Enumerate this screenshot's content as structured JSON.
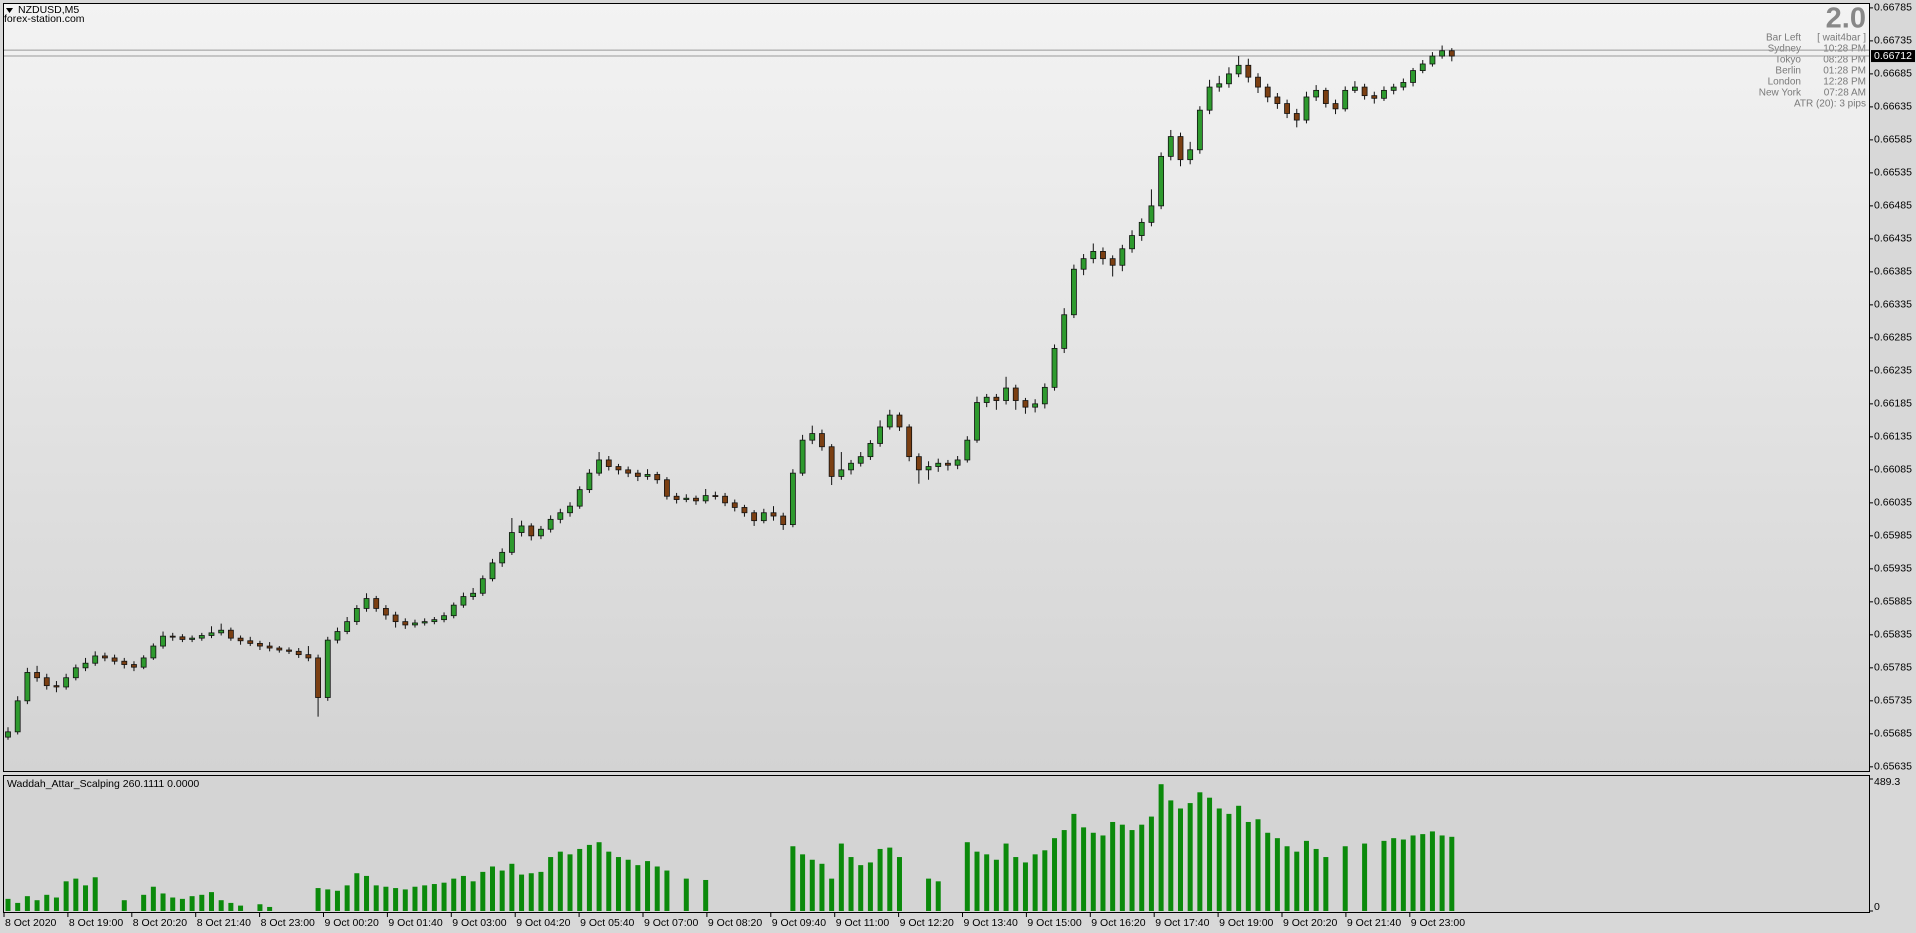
{
  "chart_data": [
    {
      "type": "candlestick",
      "title": "NZDUSD,M5",
      "subtitle": "forex-station.com",
      "ohlc": [
        [
          0.6568,
          0.65695,
          0.65676,
          0.65688
        ],
        [
          0.65688,
          0.65742,
          0.65684,
          0.65735
        ],
        [
          0.65735,
          0.65785,
          0.6573,
          0.65778
        ],
        [
          0.65778,
          0.65788,
          0.65764,
          0.6577
        ],
        [
          0.6577,
          0.65776,
          0.65752,
          0.65758
        ],
        [
          0.65758,
          0.65765,
          0.65748,
          0.65756
        ],
        [
          0.65756,
          0.65776,
          0.65752,
          0.6577
        ],
        [
          0.6577,
          0.6579,
          0.65766,
          0.65785
        ],
        [
          0.65785,
          0.658,
          0.6578,
          0.65792
        ],
        [
          0.65792,
          0.6581,
          0.65788,
          0.65803
        ],
        [
          0.65803,
          0.65808,
          0.65795,
          0.658
        ],
        [
          0.658,
          0.65805,
          0.6579,
          0.65795
        ],
        [
          0.65795,
          0.658,
          0.65784,
          0.6579
        ],
        [
          0.6579,
          0.65795,
          0.6578,
          0.65786
        ],
        [
          0.65786,
          0.65804,
          0.65783,
          0.658
        ],
        [
          0.658,
          0.65822,
          0.65797,
          0.65818
        ],
        [
          0.65818,
          0.6584,
          0.65814,
          0.65833
        ],
        [
          0.65833,
          0.65838,
          0.65826,
          0.65832
        ],
        [
          0.65832,
          0.65836,
          0.65824,
          0.65828
        ],
        [
          0.65828,
          0.65834,
          0.65824,
          0.6583
        ],
        [
          0.6583,
          0.65838,
          0.65826,
          0.65834
        ],
        [
          0.65834,
          0.65848,
          0.6583,
          0.65838
        ],
        [
          0.65838,
          0.65852,
          0.65834,
          0.65842
        ],
        [
          0.65842,
          0.65846,
          0.65826,
          0.6583
        ],
        [
          0.6583,
          0.65834,
          0.6582,
          0.65826
        ],
        [
          0.65826,
          0.65832,
          0.65818,
          0.65822
        ],
        [
          0.65822,
          0.65826,
          0.65812,
          0.65818
        ],
        [
          0.65818,
          0.65824,
          0.6581,
          0.65815
        ],
        [
          0.65815,
          0.65818,
          0.65808,
          0.65812
        ],
        [
          0.65812,
          0.65816,
          0.65806,
          0.6581
        ],
        [
          0.6581,
          0.65815,
          0.658,
          0.65805
        ],
        [
          0.65805,
          0.65818,
          0.65795,
          0.658
        ],
        [
          0.658,
          0.65805,
          0.65711,
          0.6574
        ],
        [
          0.6574,
          0.65832,
          0.65735,
          0.65827
        ],
        [
          0.65827,
          0.65846,
          0.65822,
          0.6584
        ],
        [
          0.6584,
          0.65862,
          0.65836,
          0.65855
        ],
        [
          0.65855,
          0.6588,
          0.6585,
          0.65875
        ],
        [
          0.65875,
          0.65898,
          0.6587,
          0.6589
        ],
        [
          0.6589,
          0.65894,
          0.6587,
          0.65875
        ],
        [
          0.65875,
          0.6588,
          0.65858,
          0.65865
        ],
        [
          0.65865,
          0.6587,
          0.65846,
          0.65855
        ],
        [
          0.65855,
          0.6586,
          0.65844,
          0.6585
        ],
        [
          0.6585,
          0.65858,
          0.65846,
          0.65853
        ],
        [
          0.65853,
          0.6586,
          0.65849,
          0.65855
        ],
        [
          0.65855,
          0.65862,
          0.65851,
          0.65858
        ],
        [
          0.65858,
          0.65869,
          0.65854,
          0.65864
        ],
        [
          0.65864,
          0.65884,
          0.6586,
          0.6588
        ],
        [
          0.6588,
          0.65899,
          0.65876,
          0.65893
        ],
        [
          0.65893,
          0.65906,
          0.65888,
          0.65898
        ],
        [
          0.65898,
          0.65925,
          0.65894,
          0.6592
        ],
        [
          0.6592,
          0.6595,
          0.65916,
          0.65944
        ],
        [
          0.65944,
          0.65966,
          0.65938,
          0.6596
        ],
        [
          0.6596,
          0.66012,
          0.65956,
          0.6599
        ],
        [
          0.6599,
          0.66008,
          0.65984,
          0.66
        ],
        [
          0.66,
          0.66004,
          0.65978,
          0.65985
        ],
        [
          0.65985,
          0.66,
          0.6598,
          0.65995
        ],
        [
          0.65995,
          0.66016,
          0.6599,
          0.6601
        ],
        [
          0.6601,
          0.66026,
          0.66004,
          0.6602
        ],
        [
          0.6602,
          0.66036,
          0.66014,
          0.6603
        ],
        [
          0.6603,
          0.6606,
          0.66026,
          0.66055
        ],
        [
          0.66055,
          0.66086,
          0.6605,
          0.6608
        ],
        [
          0.6608,
          0.66112,
          0.66076,
          0.661
        ],
        [
          0.661,
          0.66106,
          0.66084,
          0.6609
        ],
        [
          0.6609,
          0.66094,
          0.66078,
          0.66085
        ],
        [
          0.66085,
          0.6609,
          0.66074,
          0.6608
        ],
        [
          0.6608,
          0.66085,
          0.66068,
          0.66075
        ],
        [
          0.66075,
          0.66086,
          0.6607,
          0.66078
        ],
        [
          0.66078,
          0.66082,
          0.66064,
          0.6607
        ],
        [
          0.6607,
          0.66074,
          0.6604,
          0.66045
        ],
        [
          0.66045,
          0.6605,
          0.66034,
          0.6604
        ],
        [
          0.6604,
          0.66048,
          0.66036,
          0.66042
        ],
        [
          0.66042,
          0.66046,
          0.66032,
          0.66038
        ],
        [
          0.66038,
          0.66056,
          0.66034,
          0.66046
        ],
        [
          0.66046,
          0.66052,
          0.6604,
          0.66045
        ],
        [
          0.66045,
          0.6605,
          0.6603,
          0.66035
        ],
        [
          0.66035,
          0.6604,
          0.66022,
          0.66028
        ],
        [
          0.66028,
          0.66032,
          0.66014,
          0.6602
        ],
        [
          0.6602,
          0.66024,
          0.66,
          0.66008
        ],
        [
          0.66008,
          0.66026,
          0.66004,
          0.6602
        ],
        [
          0.6602,
          0.6603,
          0.66008,
          0.66015
        ],
        [
          0.66015,
          0.6602,
          0.65994,
          0.66002
        ],
        [
          0.66002,
          0.66086,
          0.65998,
          0.6608
        ],
        [
          0.6608,
          0.66138,
          0.66076,
          0.6613
        ],
        [
          0.6613,
          0.66152,
          0.66124,
          0.6614
        ],
        [
          0.6614,
          0.66146,
          0.66114,
          0.6612
        ],
        [
          0.6612,
          0.66124,
          0.66062,
          0.66075
        ],
        [
          0.66075,
          0.66112,
          0.6607,
          0.66085
        ],
        [
          0.66085,
          0.661,
          0.66078,
          0.66095
        ],
        [
          0.66095,
          0.66112,
          0.6609,
          0.66105
        ],
        [
          0.66105,
          0.6613,
          0.661,
          0.66125
        ],
        [
          0.66125,
          0.6616,
          0.6612,
          0.6615
        ],
        [
          0.6615,
          0.66176,
          0.66146,
          0.66168
        ],
        [
          0.66168,
          0.66172,
          0.66144,
          0.6615
        ],
        [
          0.6615,
          0.66154,
          0.66098,
          0.66105
        ],
        [
          0.66105,
          0.6611,
          0.66064,
          0.66085
        ],
        [
          0.66085,
          0.66098,
          0.6607,
          0.6609
        ],
        [
          0.6609,
          0.66102,
          0.66082,
          0.66095
        ],
        [
          0.66095,
          0.661,
          0.66084,
          0.66092
        ],
        [
          0.66092,
          0.66106,
          0.66086,
          0.661
        ],
        [
          0.661,
          0.66136,
          0.66096,
          0.6613
        ],
        [
          0.6613,
          0.66196,
          0.66126,
          0.66187
        ],
        [
          0.66187,
          0.662,
          0.6618,
          0.66195
        ],
        [
          0.66195,
          0.662,
          0.66176,
          0.6619
        ],
        [
          0.6619,
          0.66226,
          0.66184,
          0.66209
        ],
        [
          0.66209,
          0.66214,
          0.66176,
          0.6619
        ],
        [
          0.6619,
          0.66194,
          0.6617,
          0.6618
        ],
        [
          0.6618,
          0.66192,
          0.66172,
          0.66185
        ],
        [
          0.66185,
          0.66216,
          0.66178,
          0.6621
        ],
        [
          0.6621,
          0.66275,
          0.66205,
          0.66269
        ],
        [
          0.66269,
          0.6633,
          0.66262,
          0.6632
        ],
        [
          0.6632,
          0.66396,
          0.66315,
          0.66389
        ],
        [
          0.66389,
          0.66412,
          0.6638,
          0.66405
        ],
        [
          0.66405,
          0.66428,
          0.66398,
          0.66416
        ],
        [
          0.66416,
          0.66422,
          0.66396,
          0.66405
        ],
        [
          0.66405,
          0.6641,
          0.66378,
          0.66395
        ],
        [
          0.66395,
          0.66426,
          0.66386,
          0.6642
        ],
        [
          0.6642,
          0.66448,
          0.66414,
          0.6644
        ],
        [
          0.6644,
          0.66466,
          0.66432,
          0.6646
        ],
        [
          0.6646,
          0.6651,
          0.66454,
          0.66485
        ],
        [
          0.66485,
          0.66566,
          0.6648,
          0.6656
        ],
        [
          0.6656,
          0.666,
          0.66554,
          0.6659
        ],
        [
          0.6659,
          0.66596,
          0.66545,
          0.66555
        ],
        [
          0.66555,
          0.66582,
          0.66548,
          0.6657
        ],
        [
          0.6657,
          0.66636,
          0.66564,
          0.6663
        ],
        [
          0.6663,
          0.66676,
          0.66624,
          0.66665
        ],
        [
          0.66665,
          0.66682,
          0.66658,
          0.6667
        ],
        [
          0.6667,
          0.66695,
          0.66664,
          0.66685
        ],
        [
          0.66685,
          0.66712,
          0.6668,
          0.66698
        ],
        [
          0.66698,
          0.66708,
          0.66672,
          0.6668
        ],
        [
          0.6668,
          0.66686,
          0.66656,
          0.66665
        ],
        [
          0.66665,
          0.6667,
          0.66642,
          0.6665
        ],
        [
          0.6665,
          0.66656,
          0.66632,
          0.6664
        ],
        [
          0.6664,
          0.66646,
          0.66618,
          0.66625
        ],
        [
          0.66625,
          0.66632,
          0.66604,
          0.66615
        ],
        [
          0.66615,
          0.66658,
          0.6661,
          0.6665
        ],
        [
          0.6665,
          0.66668,
          0.66644,
          0.6666
        ],
        [
          0.6666,
          0.66664,
          0.66634,
          0.6664
        ],
        [
          0.6664,
          0.66646,
          0.66624,
          0.66632
        ],
        [
          0.66632,
          0.66666,
          0.66628,
          0.6666
        ],
        [
          0.6666,
          0.66674,
          0.66656,
          0.66665
        ],
        [
          0.66665,
          0.6667,
          0.66646,
          0.66652
        ],
        [
          0.66652,
          0.66658,
          0.6664,
          0.66648
        ],
        [
          0.66648,
          0.66666,
          0.66644,
          0.6666
        ],
        [
          0.6666,
          0.6667,
          0.66654,
          0.66665
        ],
        [
          0.66665,
          0.66678,
          0.6666,
          0.66672
        ],
        [
          0.66672,
          0.66694,
          0.66666,
          0.6669
        ],
        [
          0.6669,
          0.66706,
          0.66686,
          0.667
        ],
        [
          0.667,
          0.66718,
          0.66696,
          0.66712
        ],
        [
          0.66712,
          0.66728,
          0.66708,
          0.6672
        ],
        [
          0.6672,
          0.66724,
          0.66704,
          0.66712
        ]
      ],
      "ylim": [
        0.65632,
        0.66788
      ],
      "yticks": [
        0.66785,
        0.66735,
        0.66685,
        0.66635,
        0.66585,
        0.66535,
        0.66485,
        0.66435,
        0.66385,
        0.66335,
        0.66285,
        0.66235,
        0.66185,
        0.66135,
        0.66085,
        0.66035,
        0.65985,
        0.65935,
        0.65885,
        0.65835,
        0.65785,
        0.65735,
        0.65685,
        0.65635
      ],
      "current_price": 0.66712,
      "ask_line": 0.66721,
      "bull_color": "#2e9a2e",
      "bear_color": "#7b3f12",
      "wick_color": "#111111"
    },
    {
      "type": "bar",
      "title": "Waddah_Attar_Scalping 260.1111 0.0000",
      "values": [
        45,
        30,
        55,
        40,
        60,
        50,
        110,
        120,
        95,
        125,
        0,
        0,
        40,
        0,
        60,
        90,
        65,
        50,
        45,
        55,
        60,
        70,
        40,
        30,
        20,
        0,
        25,
        15,
        0,
        0,
        0,
        0,
        85,
        80,
        75,
        95,
        140,
        130,
        95,
        90,
        85,
        80,
        90,
        95,
        100,
        105,
        120,
        130,
        110,
        145,
        165,
        150,
        175,
        135,
        140,
        145,
        200,
        220,
        210,
        230,
        245,
        255,
        220,
        200,
        190,
        170,
        185,
        165,
        150,
        0,
        120,
        0,
        115,
        0,
        0,
        0,
        0,
        0,
        0,
        0,
        0,
        240,
        210,
        190,
        175,
        120,
        250,
        200,
        170,
        180,
        230,
        235,
        200,
        0,
        0,
        120,
        110,
        0,
        0,
        255,
        220,
        210,
        190,
        250,
        200,
        180,
        210,
        225,
        270,
        300,
        360,
        310,
        290,
        280,
        330,
        320,
        300,
        320,
        350,
        470,
        410,
        380,
        400,
        440,
        420,
        380,
        360,
        390,
        330,
        340,
        290,
        270,
        240,
        220,
        260,
        230,
        200,
        0,
        240,
        0,
        250,
        0,
        260,
        270,
        265,
        280,
        285,
        295,
        280,
        275
      ],
      "ylim": [
        0,
        489.3
      ],
      "yticks": [
        0,
        489.3
      ],
      "color": "#0b8a0b",
      "x_labels": [
        "8 Oct 2020",
        "8 Oct 19:00",
        "8 Oct 20:20",
        "8 Oct 21:40",
        "8 Oct 23:00",
        "9 Oct 00:20",
        "9 Oct 01:40",
        "9 Oct 03:00",
        "9 Oct 04:20",
        "9 Oct 05:40",
        "9 Oct 07:00",
        "9 Oct 08:20",
        "9 Oct 09:40",
        "9 Oct 11:00",
        "9 Oct 12:20",
        "9 Oct 13:40",
        "9 Oct 15:00",
        "9 Oct 16:20",
        "9 Oct 17:40",
        "9 Oct 19:00",
        "9 Oct 20:20",
        "9 Oct 21:40",
        "9 Oct 23:00"
      ]
    }
  ],
  "info_panel": {
    "version": "2.0",
    "rows": [
      [
        "Bar Left",
        "[ wait4bar ]"
      ],
      [
        "Sydney",
        "10:28 PM"
      ],
      [
        "Tokyo",
        "08:28 PM"
      ],
      [
        "Berlin",
        "01:28 PM"
      ],
      [
        "London",
        "12:28 PM"
      ],
      [
        "New York",
        "07:28 AM"
      ]
    ],
    "atr": "ATR (20): 3 pips"
  }
}
